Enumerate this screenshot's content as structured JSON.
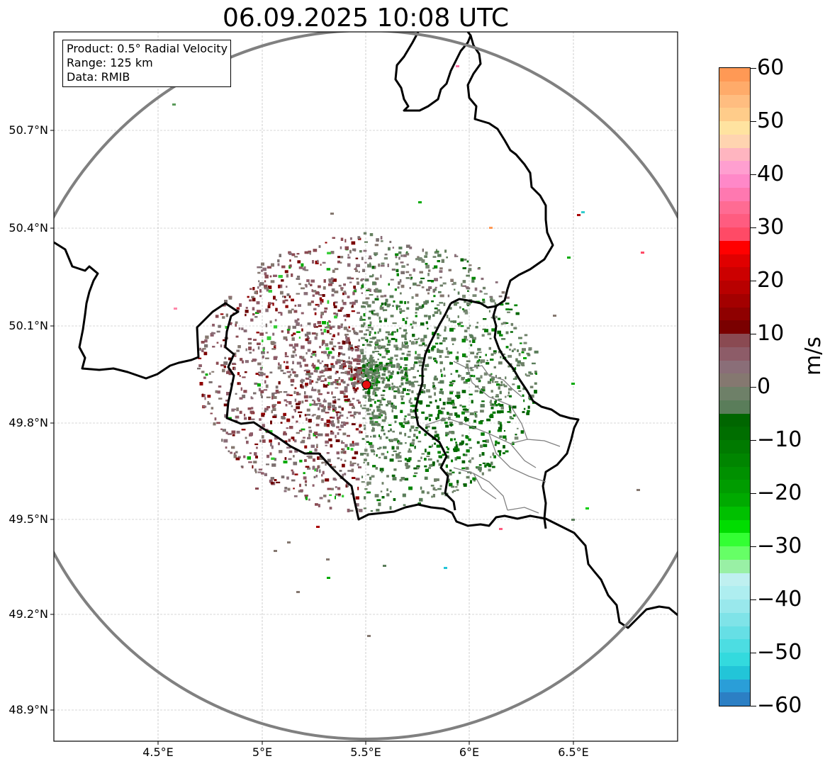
{
  "title": "06.09.2025 10:08 UTC",
  "info": {
    "product": "Product: 0.5° Radial Velocity",
    "range": "Range: 125 km",
    "data": "Data: RMIB"
  },
  "lat_labels": [
    "50.7°N",
    "50.4°N",
    "50.1°N",
    "49.8°N",
    "49.5°N",
    "49.2°N",
    "48.9°N"
  ],
  "lon_labels": [
    "4.5°E",
    "5°E",
    "5.5°E",
    "6°E",
    "6.5°E"
  ],
  "colorbar": {
    "label": "m/s",
    "ticks": [
      "60",
      "50",
      "40",
      "30",
      "20",
      "10",
      "0",
      "−10",
      "−20",
      "−30",
      "−40",
      "−50",
      "−60"
    ],
    "colors_top_to_bottom": [
      "#ff9955",
      "#ffab6a",
      "#ffbd80",
      "#ffcc8a",
      "#ffe3a0",
      "#ffd4b0",
      "#ffb5c0",
      "#ff9fd0",
      "#ff88c8",
      "#ff78b0",
      "#ff6b93",
      "#ff5c80",
      "#ff4a66",
      "#ff0000",
      "#e00000",
      "#cc0000",
      "#b80000",
      "#a30000",
      "#8f0000",
      "#7a0000",
      "#8a4a52",
      "#8d5c68",
      "#8a6e78",
      "#857870",
      "#6e8068",
      "#5a7d5a",
      "#006600",
      "#006e00",
      "#007a00",
      "#008500",
      "#009000",
      "#009c00",
      "#00aa00",
      "#00c000",
      "#00dd00",
      "#33ff33",
      "#66ff66",
      "#99f0a5",
      "#bff0f0",
      "#aeeef0",
      "#99e8ec",
      "#7fe3e8",
      "#66dfe5",
      "#4cdde2",
      "#33dade",
      "#22c5d8",
      "#2a9ed8",
      "#2c7fc4"
    ]
  },
  "radar": {
    "site": "RMIB radar",
    "lon": 5.505,
    "lat": 49.914,
    "range_km": 125
  }
}
